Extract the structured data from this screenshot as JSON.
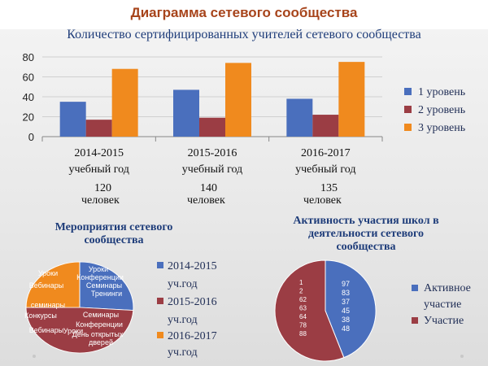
{
  "slide_title": "Диаграмма сетевого сообщества",
  "colors": {
    "level1": "#4a6fbd",
    "level2": "#9b3d44",
    "level3": "#f08a1e",
    "axis": "#888888",
    "title_red": "#a7441b",
    "title_blue": "#1f3d7a"
  },
  "chart_data": [
    {
      "type": "bar",
      "title": "Количество сертифицированных учителей сетевого сообщества",
      "categories": [
        [
          "2014-2015",
          "учебный год"
        ],
        [
          "2015-2016",
          "учебный год"
        ],
        [
          "2016-2017",
          "учебный год"
        ]
      ],
      "series": [
        {
          "name": "1 уровень",
          "values": [
            35,
            47,
            38
          ]
        },
        {
          "name": "2 уровень",
          "values": [
            17,
            19,
            22
          ]
        },
        {
          "name": "3 уровень",
          "values": [
            68,
            74,
            75
          ]
        }
      ],
      "ylim": [
        0,
        80
      ],
      "yticks": [
        0,
        20,
        40,
        60,
        80
      ],
      "legend": "right",
      "grid": true,
      "totals": [
        [
          "120",
          "человек"
        ],
        [
          "140",
          "человек"
        ],
        [
          "135",
          "человек"
        ]
      ]
    },
    {
      "type": "pie",
      "title": [
        "Мероприятия сетевого",
        "сообщества"
      ],
      "slices": [
        {
          "name": "2014-2015 уч.год",
          "value": 26,
          "labels": [
            "Уроки",
            "Конференции",
            "Семинары",
            "Тренинги"
          ]
        },
        {
          "name": "2015-2016 уч.год",
          "value": 49,
          "labels": [
            "Семинары",
            "Конференции",
            "День открытых",
            "дверей",
            "Уроки",
            "Вебинары",
            "Конкурсы"
          ]
        },
        {
          "name": "2016-2017 уч.год",
          "value": 25,
          "labels": [
            "Уроки",
            "Вебинары",
            "семинары"
          ]
        }
      ],
      "legend": [
        "2014-2015",
        "уч.год",
        "2015-2016",
        "уч.год",
        "2016-2017",
        "уч.год"
      ]
    },
    {
      "type": "pie",
      "title": [
        "Активность участия школ  в",
        "деятельности сетевого",
        "сообщества"
      ],
      "slices": [
        {
          "name": "Активное участие",
          "value": 44,
          "labels": [
            "97",
            "83",
            "37",
            "45",
            "38",
            "48"
          ]
        },
        {
          "name": "Участие",
          "value": 56,
          "labels": [
            "1",
            "2",
            "62",
            "63",
            "64",
            "78",
            "88"
          ]
        }
      ],
      "legend": [
        "Активное",
        "участие",
        "Участие"
      ]
    }
  ]
}
